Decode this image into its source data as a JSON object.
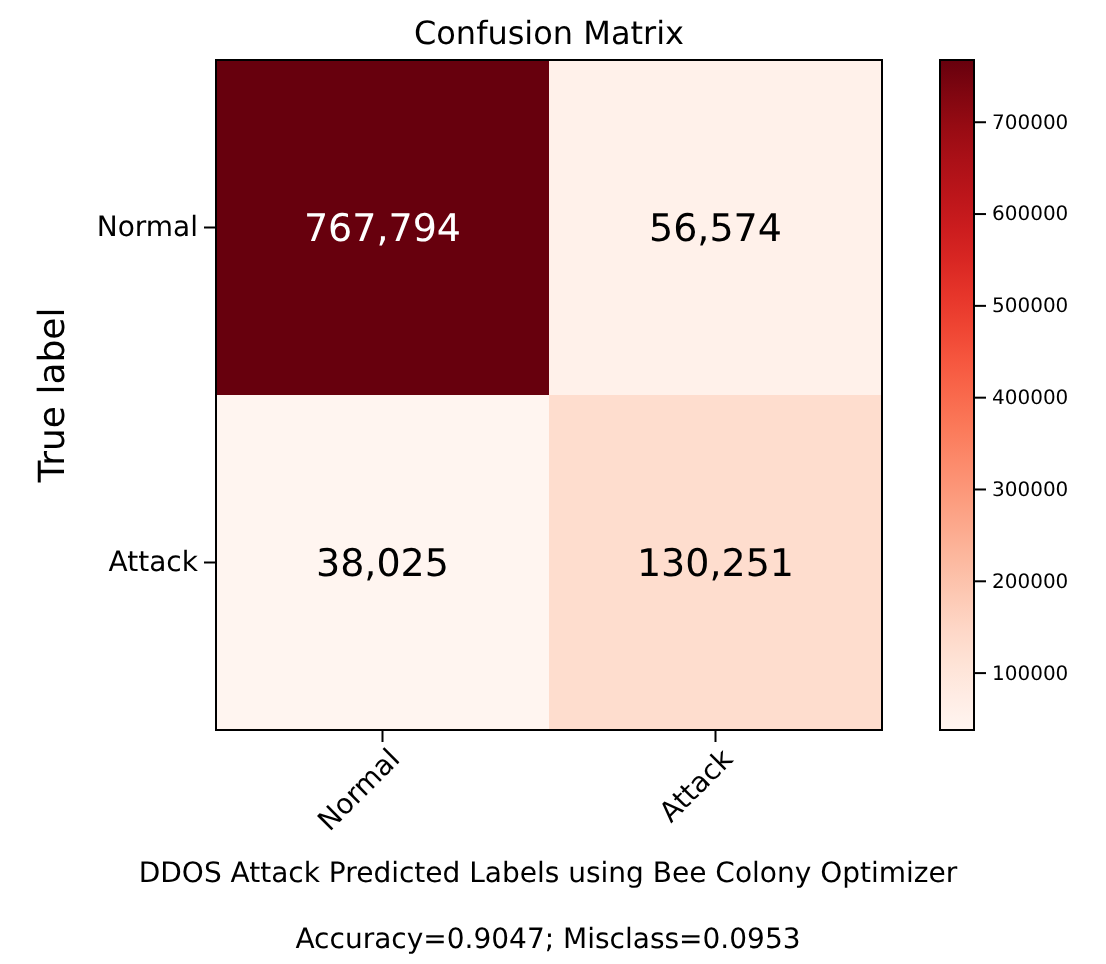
{
  "chart_data": {
    "type": "heatmap",
    "title": "Confusion Matrix",
    "xlabel": "DDOS Attack Predicted Labels using Bee Colony Optimizer",
    "ylabel": "True label",
    "categories": [
      "Normal",
      "Attack"
    ],
    "y_categories": [
      "Normal",
      "Attack"
    ],
    "cells": [
      [
        767794,
        56574
      ],
      [
        38025,
        130251
      ]
    ],
    "cell_labels": [
      [
        "767,794",
        "56,574"
      ],
      [
        "38,025",
        "130,251"
      ]
    ],
    "clim": [
      38025,
      767794
    ],
    "cticks": [
      100000,
      200000,
      300000,
      400000,
      500000,
      600000,
      700000
    ],
    "annotations": [
      "Accuracy=0.9047; Misclass=0.0953"
    ]
  }
}
